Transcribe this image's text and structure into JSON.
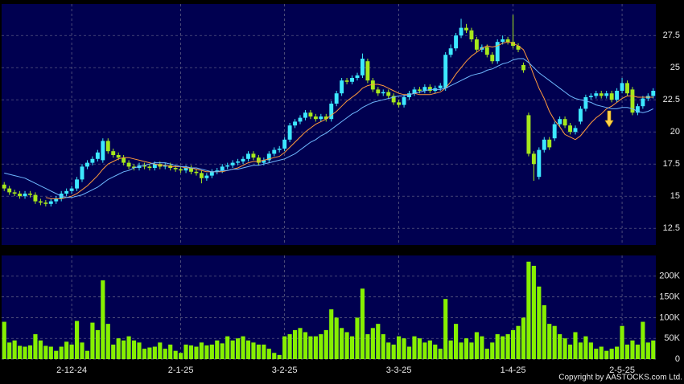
{
  "chart_data": [
    {
      "type": "candlestick",
      "up_color": "#3de8ff",
      "down_color": "#a6e81c",
      "ylim": [
        11.2,
        29.95
      ],
      "yticks": [
        12.5,
        15,
        17.5,
        20,
        22.5,
        25,
        27.5
      ],
      "grid": true,
      "open": [
        15.9,
        15.6,
        15.3,
        15.2,
        15.0,
        15.2,
        15.1,
        14.6,
        14.5,
        14.4,
        14.6,
        14.8,
        15.2,
        15.4,
        15.6,
        16.3,
        17.3,
        17.6,
        17.9,
        17.8,
        19.3,
        18.5,
        18.2,
        18.0,
        17.6,
        17.3,
        17.2,
        17.4,
        17.3,
        17.2,
        17.5,
        17.3,
        17.4,
        17.2,
        17.1,
        17.0,
        17.2,
        16.9,
        16.8,
        16.4,
        16.6,
        16.9,
        17.0,
        17.3,
        17.4,
        17.6,
        17.7,
        17.9,
        18.3,
        18.0,
        17.6,
        17.8,
        18.3,
        18.6,
        18.7,
        19.4,
        20.5,
        20.8,
        21.1,
        21.5,
        21.2,
        21.0,
        21.2,
        21.0,
        22.2,
        23.0,
        24.0,
        23.9,
        24.2,
        24.4,
        25.5,
        24.0,
        23.3,
        23.0,
        23.1,
        22.8,
        22.3,
        22.1,
        22.7,
        23.0,
        23.3,
        23.2,
        23.5,
        23.2,
        23.4,
        23.4,
        26.0,
        26.5,
        27.5,
        28.1,
        27.9,
        27.2,
        26.4,
        26.6,
        26.0,
        25.5,
        27.0,
        27.2,
        27.0,
        26.7,
        25.2,
        21.3,
        18.3,
        16.5,
        18.6,
        19.4,
        19.5,
        20.6,
        21.0,
        20.5,
        20.0,
        20.8,
        21.8,
        22.7,
        22.8,
        23.0,
        22.8,
        23.0,
        22.5,
        23.2,
        23.8,
        23.3,
        21.5,
        22.0,
        22.6,
        22.8
      ],
      "high": [
        16.1,
        15.8,
        15.5,
        15.4,
        15.4,
        15.4,
        15.3,
        14.8,
        14.7,
        14.8,
        15.0,
        15.4,
        15.6,
        15.8,
        16.5,
        17.5,
        17.8,
        18.1,
        18.6,
        19.5,
        19.5,
        18.7,
        18.4,
        18.2,
        17.8,
        17.5,
        17.6,
        17.6,
        17.5,
        17.7,
        17.7,
        17.6,
        17.6,
        17.4,
        17.3,
        17.4,
        17.4,
        17.1,
        17.0,
        16.8,
        17.1,
        17.2,
        17.5,
        17.6,
        17.8,
        17.9,
        18.1,
        18.5,
        18.5,
        18.2,
        18.0,
        18.5,
        18.8,
        18.9,
        19.6,
        20.7,
        21.0,
        21.3,
        21.7,
        21.7,
        21.4,
        21.4,
        21.4,
        22.4,
        23.2,
        24.2,
        24.2,
        24.4,
        24.6,
        26.1,
        25.7,
        24.2,
        23.5,
        23.3,
        23.3,
        23.0,
        22.5,
        22.9,
        23.2,
        23.5,
        23.5,
        23.7,
        23.7,
        23.6,
        23.8,
        26.2,
        26.8,
        27.7,
        28.8,
        28.4,
        28.1,
        27.4,
        26.8,
        26.8,
        26.2,
        27.2,
        27.5,
        27.4,
        29.1,
        26.9,
        25.4,
        21.5,
        18.5,
        18.8,
        19.6,
        19.6,
        20.8,
        21.2,
        21.2,
        20.7,
        20.5,
        22.0,
        22.9,
        23.0,
        23.2,
        23.2,
        23.2,
        23.2,
        23.4,
        24.2,
        24.0,
        23.5,
        22.2,
        22.8,
        23.0,
        23.4
      ],
      "low": [
        15.4,
        15.1,
        15.0,
        14.8,
        14.8,
        14.9,
        14.4,
        14.3,
        14.2,
        14.2,
        14.4,
        14.6,
        15.0,
        15.2,
        15.4,
        16.1,
        17.1,
        17.4,
        17.7,
        17.6,
        18.3,
        18.0,
        17.8,
        17.4,
        17.1,
        17.0,
        17.0,
        17.1,
        17.0,
        17.0,
        17.1,
        17.1,
        17.0,
        16.9,
        16.8,
        16.8,
        16.7,
        16.6,
        16.0,
        16.2,
        16.4,
        16.7,
        16.8,
        17.1,
        17.2,
        17.4,
        17.5,
        17.7,
        17.8,
        17.4,
        17.4,
        17.6,
        18.1,
        18.4,
        18.5,
        19.2,
        20.3,
        20.6,
        20.9,
        21.0,
        20.8,
        20.8,
        20.8,
        20.8,
        22.0,
        22.8,
        23.7,
        23.7,
        24.0,
        24.2,
        23.8,
        23.1,
        22.8,
        22.8,
        22.6,
        22.1,
        21.9,
        21.9,
        22.5,
        22.8,
        23.0,
        23.0,
        23.0,
        23.0,
        23.2,
        23.2,
        25.8,
        26.3,
        27.3,
        27.7,
        27.0,
        26.2,
        26.2,
        25.8,
        25.3,
        25.3,
        26.8,
        26.8,
        26.5,
        26.2,
        24.6,
        18.1,
        16.2,
        16.3,
        18.4,
        18.6,
        19.3,
        20.4,
        20.3,
        19.8,
        19.8,
        20.6,
        21.6,
        22.5,
        22.6,
        22.6,
        22.6,
        22.3,
        22.3,
        23.0,
        22.8,
        21.3,
        21.3,
        21.8,
        22.4,
        22.6
      ],
      "close": [
        15.6,
        15.3,
        15.2,
        15.0,
        15.2,
        15.1,
        14.6,
        14.5,
        14.4,
        14.6,
        14.8,
        15.2,
        15.4,
        15.6,
        16.3,
        17.3,
        17.6,
        17.9,
        18.4,
        19.3,
        18.5,
        18.2,
        18.0,
        17.6,
        17.3,
        17.2,
        17.4,
        17.3,
        17.2,
        17.5,
        17.3,
        17.4,
        17.2,
        17.1,
        17.0,
        17.2,
        16.9,
        16.8,
        16.4,
        16.6,
        16.9,
        17.0,
        17.3,
        17.4,
        17.6,
        17.7,
        17.9,
        18.3,
        18.0,
        17.6,
        17.8,
        18.3,
        18.6,
        18.7,
        19.4,
        20.5,
        20.8,
        21.1,
        21.5,
        21.2,
        21.0,
        21.2,
        21.0,
        22.2,
        23.0,
        24.0,
        23.9,
        24.2,
        24.4,
        25.7,
        24.0,
        23.3,
        23.0,
        23.1,
        22.8,
        22.3,
        22.1,
        22.7,
        23.0,
        23.3,
        23.2,
        23.5,
        23.2,
        23.4,
        23.6,
        26.0,
        26.5,
        27.5,
        28.1,
        27.9,
        27.2,
        26.4,
        26.6,
        26.0,
        25.5,
        27.0,
        27.2,
        27.0,
        26.7,
        26.4,
        24.8,
        18.3,
        17.5,
        18.6,
        19.4,
        18.8,
        20.6,
        21.0,
        20.5,
        20.0,
        20.3,
        21.8,
        22.7,
        22.8,
        23.0,
        22.8,
        23.0,
        22.5,
        23.2,
        23.8,
        23.0,
        21.5,
        22.0,
        22.6,
        22.8,
        23.2
      ],
      "overlays": [
        {
          "color": "#ff9a3c",
          "values": [
            null,
            null,
            null,
            null,
            null,
            null,
            null,
            null,
            14.9,
            14.8,
            14.8,
            14.8,
            14.9,
            15.0,
            15.2,
            15.5,
            15.8,
            16.2,
            16.6,
            17.1,
            17.5,
            17.7,
            17.9,
            18.0,
            18.0,
            17.9,
            17.8,
            17.7,
            17.6,
            17.5,
            17.4,
            17.4,
            17.3,
            17.3,
            17.3,
            17.2,
            17.2,
            17.1,
            17.0,
            16.9,
            16.9,
            16.9,
            16.9,
            17.0,
            17.1,
            17.2,
            17.4,
            17.6,
            17.7,
            17.7,
            17.8,
            17.9,
            18.0,
            18.1,
            18.4,
            18.8,
            19.2,
            19.6,
            20.0,
            20.3,
            20.6,
            20.8,
            21.0,
            21.3,
            21.6,
            22.0,
            22.4,
            22.7,
            23.0,
            23.4,
            23.6,
            23.7,
            23.7,
            23.6,
            23.4,
            23.2,
            23.0,
            22.9,
            22.9,
            23.0,
            22.9,
            22.9,
            22.9,
            23.0,
            23.1,
            23.4,
            23.9,
            24.5,
            25.0,
            25.5,
            25.9,
            26.2,
            26.5,
            26.7,
            26.6,
            26.7,
            26.9,
            27.0,
            26.9,
            26.7,
            26.4,
            25.5,
            24.4,
            23.4,
            22.6,
            21.6,
            20.9,
            20.4,
            19.8,
            19.6,
            19.4,
            19.7,
            20.2,
            20.7,
            21.1,
            21.4,
            21.8,
            22.0,
            22.3,
            22.6,
            22.8,
            22.8,
            22.7,
            22.7,
            22.7,
            22.7
          ]
        },
        {
          "color": "#6fb8ff",
          "values": [
            16.8,
            16.7,
            16.6,
            16.5,
            16.4,
            16.2,
            16.0,
            15.8,
            15.6,
            15.4,
            15.2,
            15.0,
            14.9,
            14.9,
            15.0,
            15.1,
            15.3,
            15.5,
            15.7,
            16.0,
            16.3,
            16.5,
            16.7,
            16.9,
            17.0,
            17.2,
            17.3,
            17.4,
            17.5,
            17.6,
            17.6,
            17.6,
            17.5,
            17.4,
            17.3,
            17.3,
            17.2,
            17.2,
            17.1,
            17.0,
            16.9,
            16.9,
            17.0,
            17.0,
            17.1,
            17.1,
            17.2,
            17.3,
            17.4,
            17.4,
            17.5,
            17.6,
            17.7,
            17.8,
            17.9,
            18.1,
            18.3,
            18.6,
            18.9,
            19.2,
            19.4,
            19.7,
            19.9,
            20.2,
            20.5,
            20.8,
            21.1,
            21.4,
            21.6,
            21.9,
            22.1,
            22.3,
            22.4,
            22.5,
            22.6,
            22.7,
            22.8,
            22.8,
            22.9,
            23.0,
            23.1,
            23.2,
            23.3,
            23.3,
            23.3,
            23.4,
            23.6,
            23.8,
            24.0,
            24.2,
            24.4,
            24.5,
            24.6,
            24.8,
            24.9,
            25.1,
            25.3,
            25.4,
            25.6,
            25.7,
            25.7,
            25.4,
            25.0,
            24.6,
            24.3,
            24.0,
            23.7,
            23.4,
            23.1,
            22.8,
            22.6,
            22.5,
            22.4,
            22.3,
            22.1,
            22.0,
            21.9,
            21.8,
            21.8,
            21.9,
            21.9,
            21.8,
            21.6,
            21.5,
            21.6,
            21.8
          ]
        }
      ]
    },
    {
      "type": "bar",
      "color": "#86f000",
      "ylim": [
        0,
        250000
      ],
      "yticks": [
        0,
        {
          "value": 50000,
          "label": "50K"
        },
        {
          "value": 100000,
          "label": "100K"
        },
        {
          "value": 150000,
          "label": "150K"
        },
        {
          "value": 200000,
          "label": "200K"
        }
      ],
      "grid": true,
      "categories": [
        null,
        null,
        null,
        null,
        null,
        null,
        null,
        null,
        null,
        null,
        null,
        null,
        null,
        "2-12-24",
        null,
        null,
        null,
        null,
        null,
        null,
        null,
        null,
        null,
        null,
        null,
        null,
        null,
        null,
        null,
        null,
        null,
        null,
        null,
        null,
        "2-1-25",
        null,
        null,
        null,
        null,
        null,
        null,
        null,
        null,
        null,
        null,
        null,
        null,
        null,
        null,
        null,
        null,
        null,
        null,
        null,
        "3-2-25",
        null,
        null,
        null,
        null,
        null,
        null,
        null,
        null,
        null,
        null,
        null,
        null,
        null,
        null,
        null,
        null,
        null,
        null,
        null,
        null,
        null,
        "3-3-25",
        null,
        null,
        null,
        null,
        null,
        null,
        null,
        null,
        null,
        null,
        null,
        null,
        null,
        null,
        null,
        null,
        null,
        null,
        null,
        null,
        null,
        "1-4-25",
        null,
        null,
        null,
        null,
        null,
        null,
        null,
        null,
        null,
        null,
        null,
        null,
        null,
        null,
        null,
        null,
        null,
        null,
        null,
        null,
        "2-5-25",
        null,
        null,
        null,
        null,
        null,
        null
      ],
      "values": [
        90000,
        40000,
        45000,
        32000,
        30000,
        33000,
        60000,
        45000,
        32000,
        30000,
        20000,
        30000,
        42000,
        35000,
        92000,
        40000,
        20000,
        88000,
        70000,
        190000,
        85000,
        35000,
        50000,
        45000,
        55000,
        45000,
        40000,
        25000,
        28000,
        30000,
        40000,
        25000,
        35000,
        20000,
        15000,
        35000,
        33000,
        30000,
        40000,
        33000,
        35000,
        45000,
        38000,
        55000,
        45000,
        50000,
        55000,
        45000,
        40000,
        35000,
        35000,
        25000,
        15000,
        10000,
        55000,
        60000,
        70000,
        75000,
        65000,
        55000,
        55000,
        60000,
        70000,
        120000,
        100000,
        75000,
        65000,
        55000,
        100000,
        170000,
        60000,
        75000,
        85000,
        60000,
        40000,
        35000,
        55000,
        50000,
        30000,
        55000,
        50000,
        40000,
        45000,
        35000,
        25000,
        145000,
        45000,
        85000,
        40000,
        50000,
        40000,
        65000,
        55000,
        25000,
        40000,
        60000,
        55000,
        60000,
        70000,
        80000,
        100000,
        235000,
        225000,
        175000,
        130000,
        85000,
        80000,
        60000,
        50000,
        35000,
        65000,
        40000,
        55000,
        40000,
        25000,
        30000,
        20000,
        25000,
        30000,
        80000,
        35000,
        45000,
        35000,
        90000,
        40000,
        45000
      ]
    }
  ],
  "footer": "Copyright by AASTOCKS.com Ltd."
}
